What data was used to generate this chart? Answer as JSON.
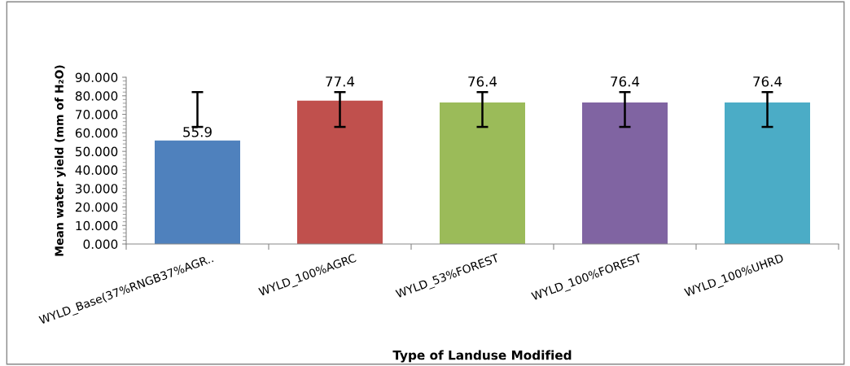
{
  "chart_data": {
    "type": "bar",
    "xlabel": "Type of Landuse Modified",
    "ylabel": "Mean water yield (mm of H₂O)",
    "categories": [
      "WYLD_Base(37%RNGB37%AGR..",
      "WYLD_100%AGRC",
      "WYLD_53%FOREST",
      "WYLD_100%FOREST",
      "WYLD_100%UHRD"
    ],
    "values": [
      55.9,
      77.4,
      76.4,
      76.4,
      76.4
    ],
    "colors": [
      "#4f81bd",
      "#c0504d",
      "#9bbb59",
      "#8064a2",
      "#4bacc6"
    ],
    "errors": [
      [
        63.2,
        82.0
      ],
      [
        63.2,
        82.0
      ],
      [
        63.2,
        82.0
      ],
      [
        63.2,
        82.0
      ],
      [
        63.2,
        82.0
      ]
    ],
    "ylim": [
      0,
      90
    ],
    "yticks": [
      {
        "value": 0,
        "label": "0.000"
      },
      {
        "value": 10,
        "label": "10.000"
      },
      {
        "value": 20,
        "label": "20.000"
      },
      {
        "value": 30,
        "label": "30.000"
      },
      {
        "value": 40,
        "label": "40.000"
      },
      {
        "value": 50,
        "label": "50.000"
      },
      {
        "value": 60,
        "label": "60.000"
      },
      {
        "value": 70,
        "label": "70.000"
      },
      {
        "value": 80,
        "label": "80.000"
      },
      {
        "value": 90,
        "label": "90.000"
      }
    ],
    "data_labels": true,
    "grid": false,
    "legend": false
  }
}
